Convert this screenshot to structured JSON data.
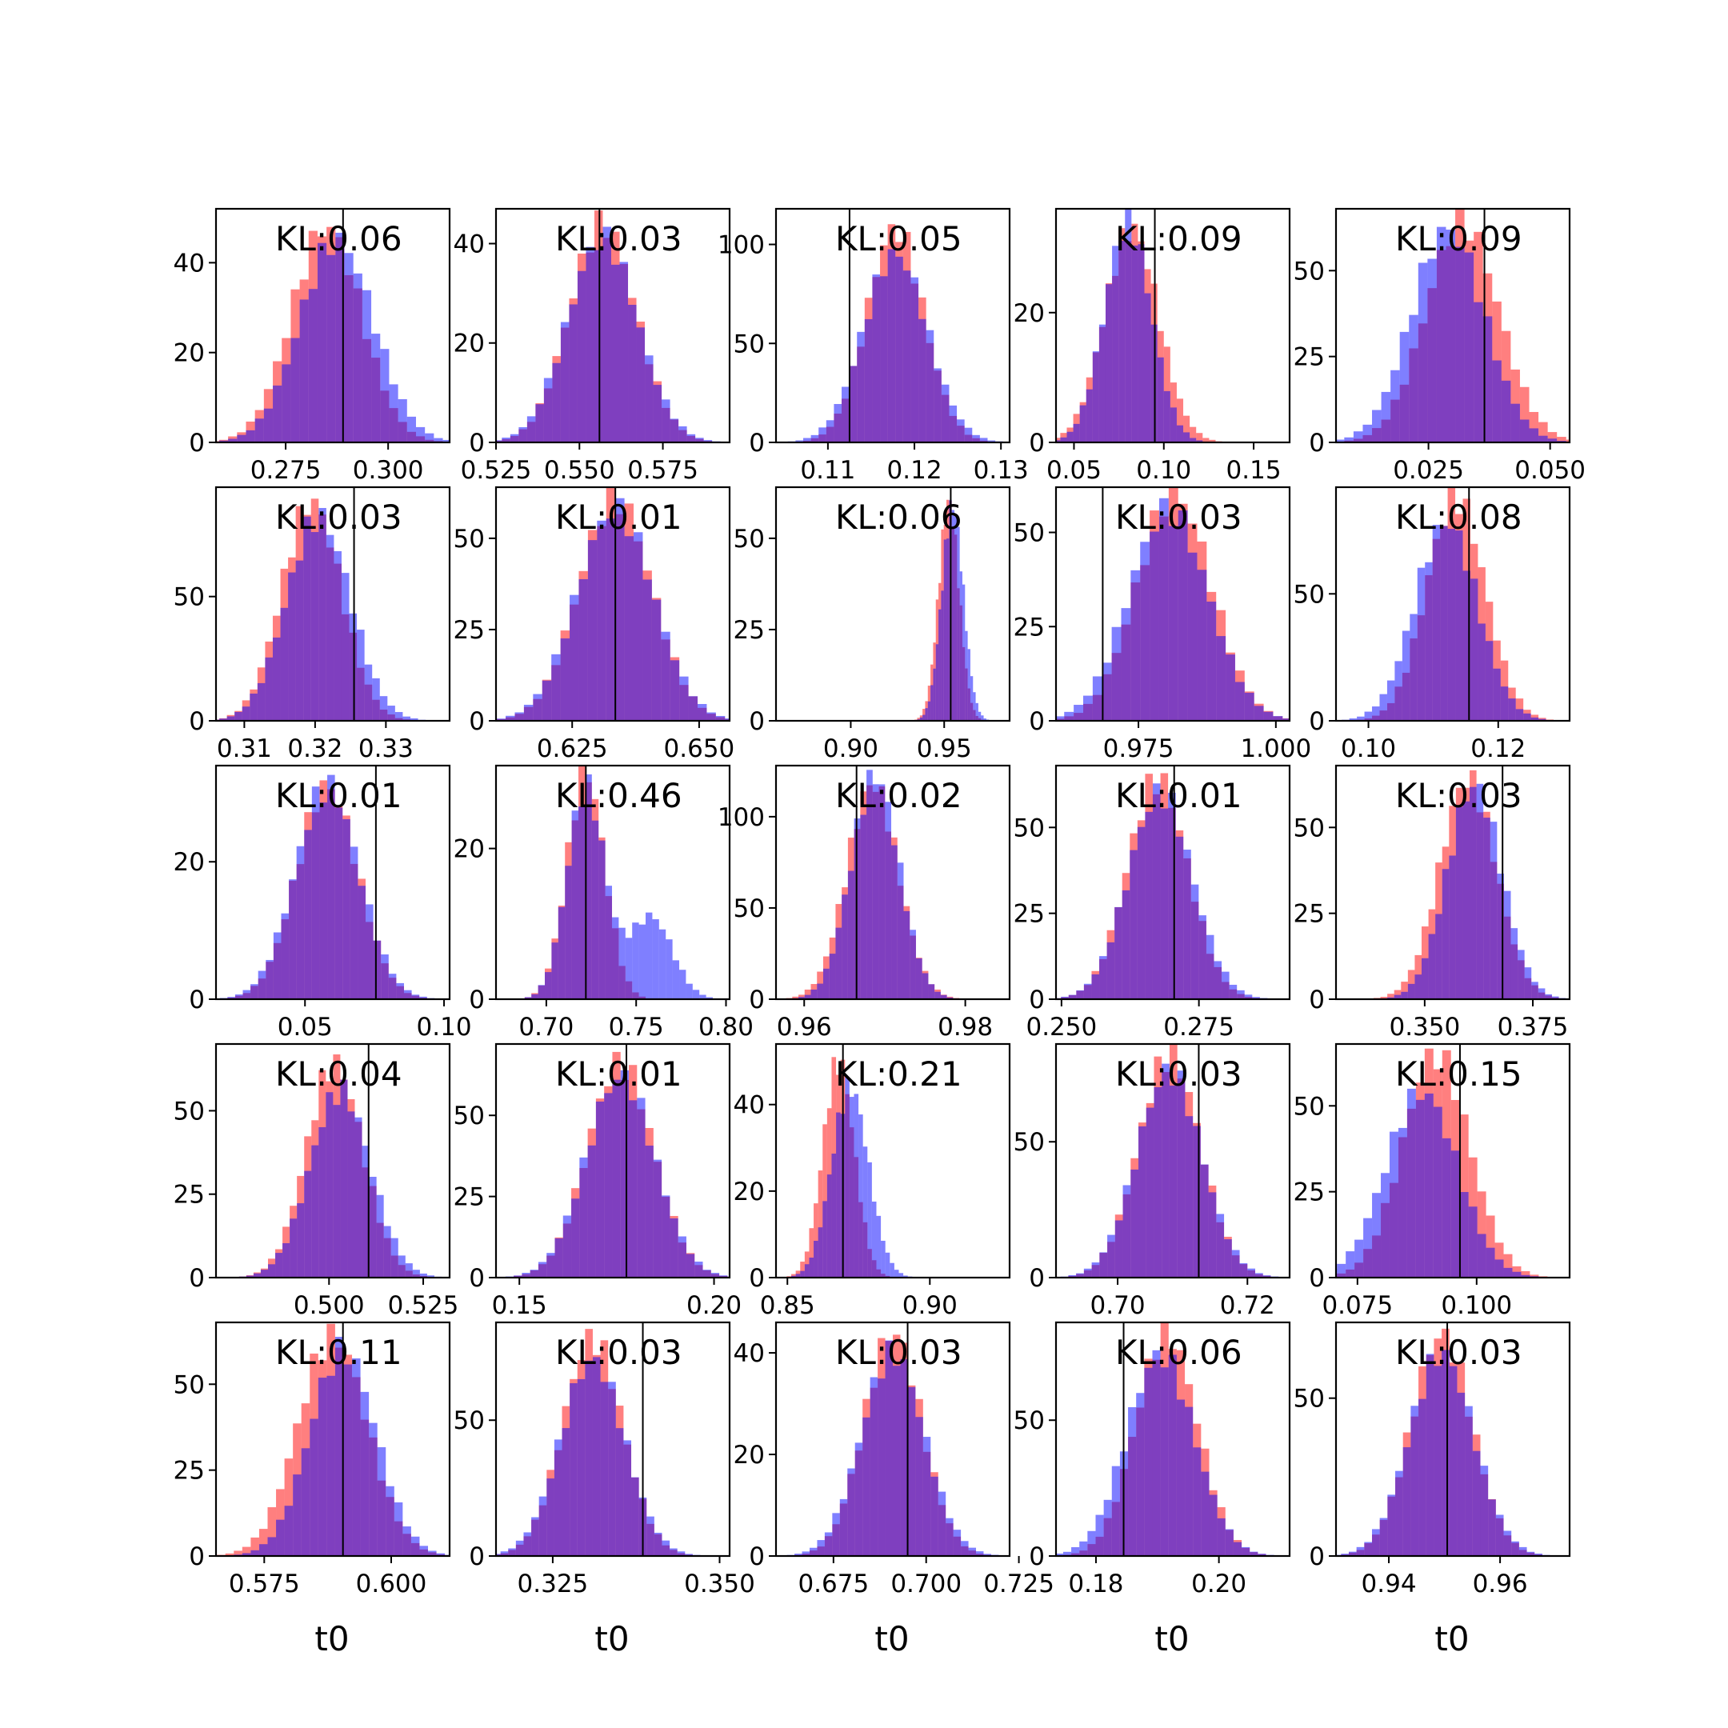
{
  "figure": {
    "xlabel": "t0",
    "colors": {
      "posterior_a": "#ff0000",
      "posterior_b": "#0000ff",
      "overlap": "#7f3fbf",
      "truth_line": "#000000"
    }
  },
  "chart_data": [
    {
      "row": 0,
      "col": 0,
      "type": "bar",
      "kl": "KL:0.06",
      "truth": 0.289,
      "xlim": [
        0.258,
        0.315
      ],
      "xticks": [
        0.275,
        0.3
      ],
      "xtick_labels": [
        "0.275",
        "0.300"
      ],
      "ylim": [
        0,
        52
      ],
      "yticks": [
        0,
        20,
        40
      ],
      "ytick_labels": [
        "0",
        "20",
        "40"
      ],
      "red": {
        "mu": 0.285,
        "sd": 0.0085,
        "peak": 48
      },
      "blue": {
        "mu": 0.2875,
        "sd": 0.009,
        "peak": 45
      }
    },
    {
      "row": 0,
      "col": 1,
      "type": "bar",
      "kl": "KL:0.03",
      "truth": 0.556,
      "xlim": [
        0.525,
        0.595
      ],
      "xticks": [
        0.525,
        0.55,
        0.575
      ],
      "xtick_labels": [
        "0.525",
        "0.550",
        "0.575"
      ],
      "ylim": [
        0,
        47
      ],
      "yticks": [
        0,
        20,
        40
      ],
      "ytick_labels": [
        "0",
        "20",
        "40"
      ],
      "red": {
        "mu": 0.557,
        "sd": 0.01,
        "peak": 44
      },
      "blue": {
        "mu": 0.557,
        "sd": 0.0105,
        "peak": 41
      }
    },
    {
      "row": 0,
      "col": 2,
      "type": "bar",
      "kl": "KL:0.05",
      "truth": 0.1125,
      "xlim": [
        0.104,
        0.131
      ],
      "xticks": [
        0.11,
        0.12,
        0.13
      ],
      "xtick_labels": [
        "0.11",
        "0.12",
        "0.13"
      ],
      "ylim": [
        0,
        118
      ],
      "yticks": [
        0,
        50,
        100
      ],
      "ytick_labels": [
        "0",
        "50",
        "100"
      ],
      "red": {
        "mu": 0.1178,
        "sd": 0.0033,
        "peak": 108
      },
      "blue": {
        "mu": 0.1178,
        "sd": 0.0037,
        "peak": 95
      }
    },
    {
      "row": 0,
      "col": 3,
      "type": "bar",
      "kl": "KL:0.09",
      "truth": 0.095,
      "xlim": [
        0.04,
        0.17
      ],
      "xticks": [
        0.05,
        0.1,
        0.15
      ],
      "xtick_labels": [
        "0.05",
        "0.10",
        "0.15"
      ],
      "ylim": [
        0,
        36
      ],
      "yticks": [
        0,
        20
      ],
      "ytick_labels": [
        "0",
        "20"
      ],
      "red": {
        "mu": 0.082,
        "sd": 0.015,
        "peak": 33
      },
      "blue": {
        "mu": 0.08,
        "sd": 0.013,
        "peak": 34
      }
    },
    {
      "row": 0,
      "col": 4,
      "type": "bar",
      "kl": "KL:0.09",
      "truth": 0.0365,
      "xlim": [
        0.006,
        0.054
      ],
      "xticks": [
        0.025,
        0.05
      ],
      "xtick_labels": [
        "0.025",
        "0.050"
      ],
      "ylim": [
        0,
        68
      ],
      "yticks": [
        0,
        25,
        50
      ],
      "ytick_labels": [
        "0",
        "25",
        "50"
      ],
      "red": {
        "mu": 0.032,
        "sd": 0.0075,
        "peak": 64
      },
      "blue": {
        "mu": 0.029,
        "sd": 0.0075,
        "peak": 62
      }
    },
    {
      "row": 1,
      "col": 0,
      "type": "bar",
      "kl": "KL:0.03",
      "truth": 0.3255,
      "xlim": [
        0.306,
        0.339
      ],
      "xticks": [
        0.31,
        0.32,
        0.33
      ],
      "xtick_labels": [
        "0.31",
        "0.32",
        "0.33"
      ],
      "ylim": [
        0,
        94
      ],
      "yticks": [
        0,
        50
      ],
      "ytick_labels": [
        "0",
        "50"
      ],
      "red": {
        "mu": 0.3195,
        "sd": 0.0042,
        "peak": 88
      },
      "blue": {
        "mu": 0.3205,
        "sd": 0.0045,
        "peak": 82
      }
    },
    {
      "row": 1,
      "col": 1,
      "type": "bar",
      "kl": "KL:0.01",
      "truth": 0.6335,
      "xlim": [
        0.61,
        0.656
      ],
      "xticks": [
        0.625,
        0.65
      ],
      "xtick_labels": [
        "0.625",
        "0.650"
      ],
      "ylim": [
        0,
        64
      ],
      "yticks": [
        0,
        25,
        50
      ],
      "ytick_labels": [
        "0",
        "25",
        "50"
      ],
      "red": {
        "mu": 0.6335,
        "sd": 0.0072,
        "peak": 61
      },
      "blue": {
        "mu": 0.6335,
        "sd": 0.0075,
        "peak": 58
      }
    },
    {
      "row": 1,
      "col": 2,
      "type": "bar",
      "kl": "KL:0.06",
      "truth": 0.9535,
      "xlim": [
        0.86,
        0.985
      ],
      "xticks": [
        0.9,
        0.95
      ],
      "xtick_labels": [
        "0.90",
        "0.95"
      ],
      "ylim": [
        0,
        64
      ],
      "yticks": [
        0,
        25,
        50
      ],
      "ytick_labels": [
        "0",
        "25",
        "50"
      ],
      "red": {
        "mu": 0.9525,
        "sd": 0.0055,
        "peak": 60
      },
      "blue": {
        "mu": 0.9545,
        "sd": 0.0058,
        "peak": 59
      }
    },
    {
      "row": 1,
      "col": 3,
      "type": "bar",
      "kl": "KL:0.03",
      "truth": 0.9685,
      "xlim": [
        0.96,
        1.0025
      ],
      "xticks": [
        0.975,
        1.0
      ],
      "xtick_labels": [
        "0.975",
        "1.000"
      ],
      "ylim": [
        0,
        62
      ],
      "yticks": [
        0,
        25,
        50
      ],
      "ytick_labels": [
        "0",
        "25",
        "50"
      ],
      "red": {
        "mu": 0.9815,
        "sd": 0.0068,
        "peak": 60
      },
      "blue": {
        "mu": 0.9805,
        "sd": 0.0072,
        "peak": 56
      }
    },
    {
      "row": 1,
      "col": 4,
      "type": "bar",
      "kl": "KL:0.08",
      "truth": 0.1155,
      "xlim": [
        0.095,
        0.131
      ],
      "xticks": [
        0.1,
        0.12
      ],
      "xtick_labels": [
        "0.10",
        "0.12"
      ],
      "ylim": [
        0,
        92
      ],
      "yticks": [
        0,
        50
      ],
      "ytick_labels": [
        "0",
        "50"
      ],
      "red": {
        "mu": 0.1135,
        "sd": 0.0045,
        "peak": 88
      },
      "blue": {
        "mu": 0.112,
        "sd": 0.0048,
        "peak": 78
      }
    },
    {
      "row": 2,
      "col": 0,
      "type": "bar",
      "kl": "KL:0.01",
      "truth": 0.0755,
      "xlim": [
        0.018,
        0.102
      ],
      "xticks": [
        0.05,
        0.1
      ],
      "xtick_labels": [
        "0.05",
        "0.10"
      ],
      "ylim": [
        0,
        34
      ],
      "yticks": [
        0,
        20
      ],
      "ytick_labels": [
        "0",
        "20"
      ],
      "red": {
        "mu": 0.058,
        "sd": 0.011,
        "peak": 31
      },
      "blue": {
        "mu": 0.058,
        "sd": 0.0115,
        "peak": 31
      }
    },
    {
      "row": 2,
      "col": 1,
      "type": "bar",
      "kl": "KL:0.46",
      "truth": 0.722,
      "xlim": [
        0.672,
        0.802
      ],
      "xticks": [
        0.7,
        0.75,
        0.8
      ],
      "xtick_labels": [
        "0.70",
        "0.75",
        "0.80"
      ],
      "ylim": [
        0,
        31
      ],
      "yticks": [
        0,
        20
      ],
      "ytick_labels": [
        "0",
        "20"
      ],
      "red": {
        "mu": 0.722,
        "sd": 0.0105,
        "peak": 30
      },
      "blue": {
        "mu": 0.722,
        "sd": 0.0105,
        "peak": 28,
        "mu2": 0.758,
        "sd2": 0.012,
        "peak2": 11
      }
    },
    {
      "row": 2,
      "col": 2,
      "type": "bar",
      "kl": "KL:0.02",
      "truth": 0.9665,
      "xlim": [
        0.9565,
        0.9855
      ],
      "xticks": [
        0.96,
        0.98
      ],
      "xtick_labels": [
        "0.96",
        "0.98"
      ],
      "ylim": [
        0,
        128
      ],
      "yticks": [
        0,
        50,
        100
      ],
      "ytick_labels": [
        "0",
        "50",
        "100"
      ],
      "red": {
        "mu": 0.9685,
        "sd": 0.0032,
        "peak": 118
      },
      "blue": {
        "mu": 0.9688,
        "sd": 0.003,
        "peak": 122
      }
    },
    {
      "row": 2,
      "col": 3,
      "type": "bar",
      "kl": "KL:0.01",
      "truth": 0.2705,
      "xlim": [
        0.249,
        0.2915
      ],
      "xticks": [
        0.25,
        0.275
      ],
      "xtick_labels": [
        "0.250",
        "0.275"
      ],
      "ylim": [
        0,
        68
      ],
      "yticks": [
        0,
        25,
        50
      ],
      "ytick_labels": [
        "0",
        "25",
        "50"
      ],
      "red": {
        "mu": 0.2675,
        "sd": 0.0055,
        "peak": 64
      },
      "blue": {
        "mu": 0.268,
        "sd": 0.0058,
        "peak": 60
      }
    },
    {
      "row": 2,
      "col": 4,
      "type": "bar",
      "kl": "KL:0.03",
      "truth": 0.368,
      "xlim": [
        0.3295,
        0.3835
      ],
      "xticks": [
        0.35,
        0.375
      ],
      "xtick_labels": [
        "0.350",
        "0.375"
      ],
      "ylim": [
        0,
        68
      ],
      "yticks": [
        0,
        25,
        50
      ],
      "ytick_labels": [
        "0",
        "25",
        "50"
      ],
      "red": {
        "mu": 0.36,
        "sd": 0.0065,
        "peak": 64
      },
      "blue": {
        "mu": 0.3615,
        "sd": 0.0063,
        "peak": 62
      }
    },
    {
      "row": 3,
      "col": 0,
      "type": "bar",
      "kl": "KL:0.04",
      "truth": 0.5105,
      "xlim": [
        0.47,
        0.532
      ],
      "xticks": [
        0.5,
        0.525
      ],
      "xtick_labels": [
        "0.500",
        "0.525"
      ],
      "ylim": [
        0,
        70
      ],
      "yticks": [
        0,
        25,
        50
      ],
      "ytick_labels": [
        "0",
        "25",
        "50"
      ],
      "red": {
        "mu": 0.5015,
        "sd": 0.0075,
        "peak": 64
      },
      "blue": {
        "mu": 0.503,
        "sd": 0.008,
        "peak": 56
      }
    },
    {
      "row": 3,
      "col": 1,
      "type": "bar",
      "kl": "KL:0.01",
      "truth": 0.1775,
      "xlim": [
        0.144,
        0.204
      ],
      "xticks": [
        0.15,
        0.2
      ],
      "xtick_labels": [
        "0.15",
        "0.20"
      ],
      "ylim": [
        0,
        72
      ],
      "yticks": [
        0,
        25,
        50
      ],
      "ytick_labels": [
        "0",
        "25",
        "50"
      ],
      "red": {
        "mu": 0.176,
        "sd": 0.0085,
        "peak": 66
      },
      "blue": {
        "mu": 0.176,
        "sd": 0.0088,
        "peak": 62
      }
    },
    {
      "row": 3,
      "col": 2,
      "type": "bar",
      "kl": "KL:0.21",
      "truth": 0.8695,
      "xlim": [
        0.846,
        0.928
      ],
      "xticks": [
        0.85,
        0.9
      ],
      "xtick_labels": [
        "0.85",
        "0.90"
      ],
      "ylim": [
        0,
        54
      ],
      "yticks": [
        0,
        20,
        40
      ],
      "ytick_labels": [
        "0",
        "20",
        "40"
      ],
      "red": {
        "mu": 0.868,
        "sd": 0.0055,
        "peak": 50
      },
      "blue": {
        "mu": 0.872,
        "sd": 0.0065,
        "peak": 44
      }
    },
    {
      "row": 3,
      "col": 3,
      "type": "bar",
      "kl": "KL:0.03",
      "truth": 0.7125,
      "xlim": [
        0.6905,
        0.7265
      ],
      "xticks": [
        0.7,
        0.72
      ],
      "xtick_labels": [
        "0.70",
        "0.72"
      ],
      "ylim": [
        0,
        86
      ],
      "yticks": [
        0,
        50
      ],
      "ytick_labels": [
        "0",
        "50"
      ],
      "red": {
        "mu": 0.708,
        "sd": 0.0048,
        "peak": 82
      },
      "blue": {
        "mu": 0.708,
        "sd": 0.005,
        "peak": 76
      }
    },
    {
      "row": 3,
      "col": 4,
      "type": "bar",
      "kl": "KL:0.15",
      "truth": 0.0965,
      "xlim": [
        0.0705,
        0.1195
      ],
      "xticks": [
        0.075,
        0.1
      ],
      "xtick_labels": [
        "0.075",
        "0.100"
      ],
      "ylim": [
        0,
        68
      ],
      "yticks": [
        0,
        25,
        50
      ],
      "ytick_labels": [
        "0",
        "25",
        "50"
      ],
      "red": {
        "mu": 0.0915,
        "sd": 0.007,
        "peak": 65
      },
      "blue": {
        "mu": 0.0885,
        "sd": 0.0075,
        "peak": 54
      }
    },
    {
      "row": 4,
      "col": 0,
      "type": "bar",
      "kl": "KL:0.11",
      "truth": 0.5905,
      "xlim": [
        0.5655,
        0.6115
      ],
      "xticks": [
        0.575,
        0.6
      ],
      "xtick_labels": [
        "0.575",
        "0.600"
      ],
      "ylim": [
        0,
        68
      ],
      "yticks": [
        0,
        25,
        50
      ],
      "ytick_labels": [
        "0",
        "25",
        "50"
      ],
      "red": {
        "mu": 0.5885,
        "sd": 0.0068,
        "peak": 64
      },
      "blue": {
        "mu": 0.5905,
        "sd": 0.0065,
        "peak": 60
      }
    },
    {
      "row": 4,
      "col": 1,
      "type": "bar",
      "kl": "KL:0.03",
      "truth": 0.3385,
      "xlim": [
        0.3165,
        0.3515
      ],
      "xticks": [
        0.325,
        0.35
      ],
      "xtick_labels": [
        "0.325",
        "0.350"
      ],
      "ylim": [
        0,
        86
      ],
      "yticks": [
        0,
        50
      ],
      "ytick_labels": [
        "0",
        "50"
      ],
      "red": {
        "mu": 0.331,
        "sd": 0.0045,
        "peak": 80
      },
      "blue": {
        "mu": 0.331,
        "sd": 0.0048,
        "peak": 72
      }
    },
    {
      "row": 4,
      "col": 2,
      "type": "bar",
      "kl": "KL:0.03",
      "truth": 0.695,
      "xlim": [
        0.6595,
        0.7225
      ],
      "xticks": [
        0.675,
        0.7,
        0.725
      ],
      "xtick_labels": [
        "0.675",
        "0.700",
        "0.725"
      ],
      "ylim": [
        0,
        46
      ],
      "yticks": [
        0,
        20,
        40
      ],
      "ytick_labels": [
        "0",
        "20",
        "40"
      ],
      "red": {
        "mu": 0.691,
        "sd": 0.0078,
        "peak": 44
      },
      "blue": {
        "mu": 0.691,
        "sd": 0.0085,
        "peak": 40
      }
    },
    {
      "row": 4,
      "col": 3,
      "type": "bar",
      "kl": "KL:0.06",
      "truth": 0.1845,
      "xlim": [
        0.1735,
        0.2115
      ],
      "xticks": [
        0.18,
        0.2
      ],
      "xtick_labels": [
        "0.18",
        "0.20"
      ],
      "ylim": [
        0,
        86
      ],
      "yticks": [
        0,
        50
      ],
      "ytick_labels": [
        "0",
        "50"
      ],
      "red": {
        "mu": 0.1915,
        "sd": 0.005,
        "peak": 82
      },
      "blue": {
        "mu": 0.1905,
        "sd": 0.0055,
        "peak": 74
      }
    },
    {
      "row": 4,
      "col": 4,
      "type": "bar",
      "kl": "KL:0.03",
      "truth": 0.9505,
      "xlim": [
        0.9305,
        0.9725
      ],
      "xticks": [
        0.94,
        0.96
      ],
      "xtick_labels": [
        "0.94",
        "0.96"
      ],
      "ylim": [
        0,
        74
      ],
      "yticks": [
        0,
        50
      ],
      "ytick_labels": [
        "0",
        "50"
      ],
      "red": {
        "mu": 0.9495,
        "sd": 0.0055,
        "peak": 70
      },
      "blue": {
        "mu": 0.9495,
        "sd": 0.0058,
        "peak": 64
      }
    }
  ]
}
